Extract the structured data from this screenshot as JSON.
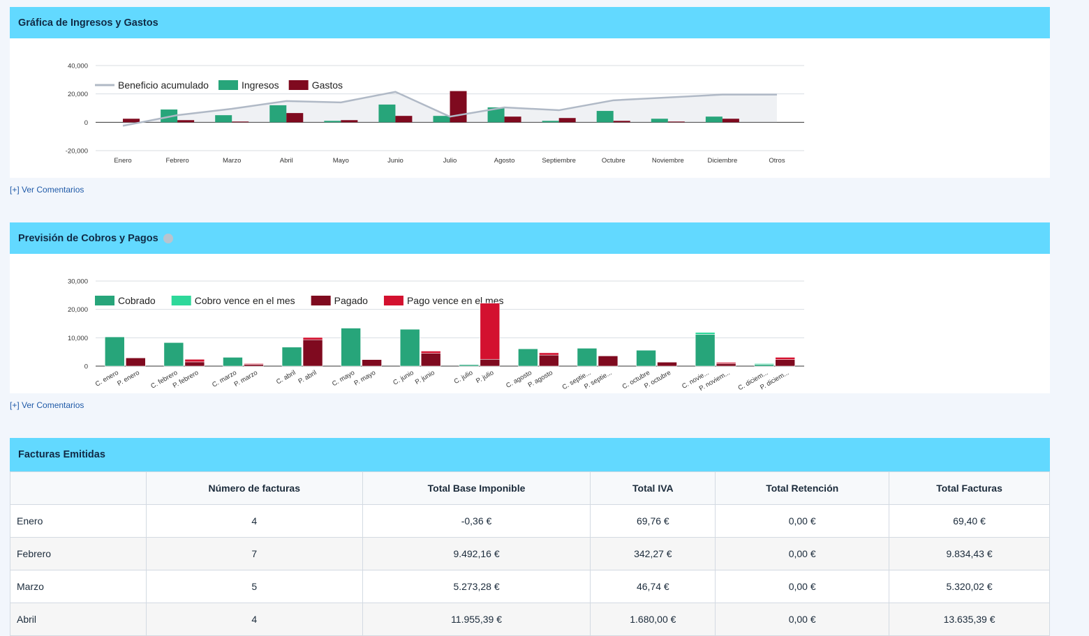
{
  "panel1": {
    "title": "Gráfica de Ingresos y Gastos",
    "link": "[+] Ver Comentarios"
  },
  "panel2": {
    "title": "Previsión de Cobros y Pagos",
    "link": "[+] Ver Comentarios"
  },
  "panel3": {
    "title": "Facturas Emitidas",
    "columns": [
      "",
      "Número de facturas",
      "Total Base Imponible",
      "Total IVA",
      "Total Retención",
      "Total Facturas"
    ],
    "rows": [
      [
        "Enero",
        "4",
        "-0,36 €",
        "69,76 €",
        "0,00 €",
        "69,40 €"
      ],
      [
        "Febrero",
        "7",
        "9.492,16 €",
        "342,27 €",
        "0,00 €",
        "9.834,43 €"
      ],
      [
        "Marzo",
        "5",
        "5.273,28 €",
        "46,74 €",
        "0,00 €",
        "5.320,02 €"
      ],
      [
        "Abril",
        "4",
        "11.955,39 €",
        "1.680,00 €",
        "0,00 €",
        "13.635,39 €"
      ]
    ]
  },
  "colors": {
    "ingresos": "#27a57a",
    "gastos": "#7f0a1f",
    "beneficio": "#b0b9c6",
    "cobrado": "#27a57a",
    "cobro_vence": "#2ed89a",
    "pagado": "#7f0a1f",
    "pago_vence": "#d3112f",
    "header": "#62d9ff"
  },
  "chart_data": [
    {
      "type": "bar",
      "categories": [
        "Enero",
        "Febrero",
        "Marzo",
        "Abril",
        "Mayo",
        "Junio",
        "Julio",
        "Agosto",
        "Septiembre",
        "Octubre",
        "Noviembre",
        "Diciembre",
        "Otros"
      ],
      "series": [
        {
          "name": "Ingresos",
          "values": [
            0,
            9000,
            5000,
            12000,
            1000,
            12500,
            4500,
            10500,
            1000,
            8000,
            2500,
            4000,
            0
          ]
        },
        {
          "name": "Gastos",
          "values": [
            2500,
            1500,
            500,
            6500,
            1500,
            4500,
            22000,
            4000,
            3000,
            1000,
            500,
            2500,
            0
          ]
        },
        {
          "name": "Beneficio acumulado",
          "type": "line",
          "values": [
            -2500,
            5000,
            9500,
            15000,
            14000,
            21500,
            4000,
            10500,
            8500,
            15500,
            17500,
            19500,
            19500
          ]
        }
      ],
      "ylim": [
        -20000,
        40000
      ],
      "yticks": [
        "40,000",
        "20,000",
        "0",
        "-20,000"
      ],
      "legend": "top-left",
      "grid": true
    },
    {
      "type": "bar",
      "stacked": true,
      "categories": [
        "C. enero",
        "P. enero",
        "C. febrero",
        "P. febrero",
        "C. marzo",
        "P. marzo",
        "C. abril",
        "P. abril",
        "C. mayo",
        "P. mayo",
        "C. junio",
        "P. junio",
        "C. julio",
        "P. julio",
        "C. agosto",
        "P. agosto",
        "C. septie...",
        "P. septie...",
        "C. octubre",
        "P. octubre",
        "C. novie...",
        "P. noviem...",
        "C. diciem...",
        "P. diciem..."
      ],
      "series": [
        {
          "name": "Cobrado",
          "values": [
            10300,
            0,
            8300,
            0,
            3100,
            0,
            6700,
            0,
            13400,
            0,
            13000,
            0,
            500,
            0,
            6100,
            0,
            6300,
            0,
            5600,
            0,
            11200,
            0,
            600,
            0
          ]
        },
        {
          "name": "Cobro vence en el mes",
          "values": [
            0,
            0,
            0,
            0,
            0,
            0,
            0,
            0,
            0,
            0,
            0,
            0,
            0,
            0,
            0,
            0,
            0,
            0,
            0,
            0,
            700,
            0,
            300,
            0
          ]
        },
        {
          "name": "Pagado",
          "values": [
            0,
            2900,
            0,
            1500,
            0,
            600,
            0,
            9300,
            0,
            2300,
            0,
            4500,
            0,
            2400,
            0,
            3900,
            0,
            3600,
            0,
            1400,
            0,
            900,
            0,
            2300
          ]
        },
        {
          "name": "Pago vence en el mes",
          "values": [
            0,
            0,
            0,
            900,
            0,
            300,
            0,
            800,
            0,
            0,
            0,
            800,
            0,
            19800,
            0,
            800,
            0,
            0,
            0,
            0,
            0,
            400,
            0,
            800
          ]
        }
      ],
      "ylim": [
        0,
        30000
      ],
      "yticks": [
        "30,000",
        "20,000",
        "10,000",
        "0"
      ],
      "legend": "top-left",
      "grid": true
    }
  ]
}
